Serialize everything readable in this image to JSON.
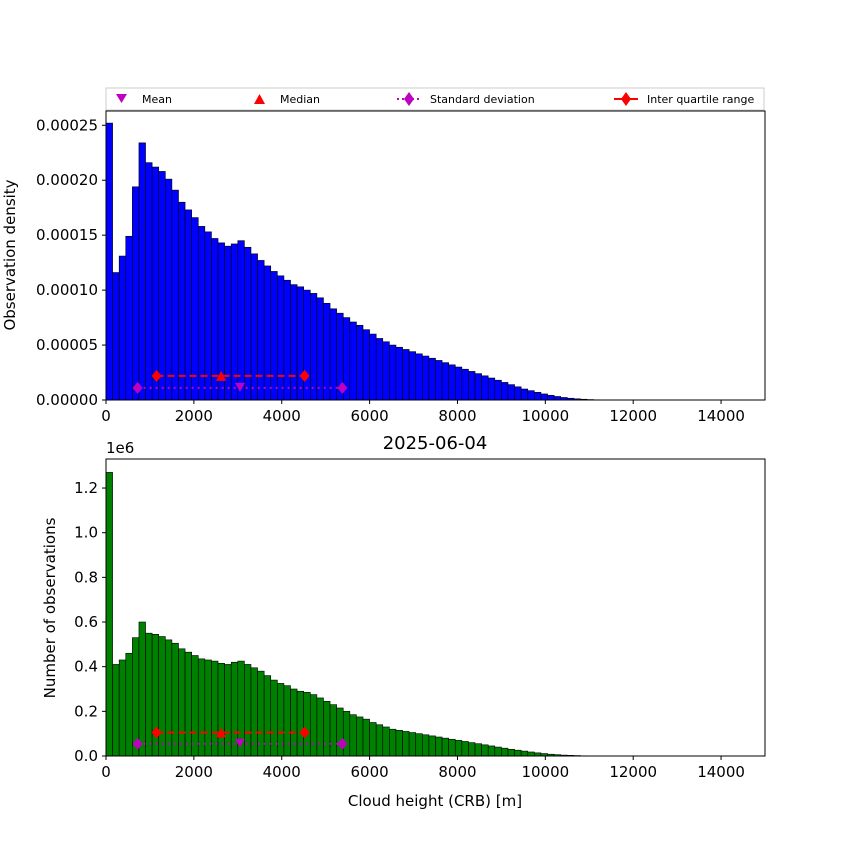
{
  "chart_data": [
    {
      "type": "bar",
      "title": "",
      "xlabel": "",
      "ylabel": "Observation density",
      "xlim": [
        0,
        15000
      ],
      "ylim": [
        0,
        0.000263
      ],
      "bin_width": 150,
      "color": "#0000ff",
      "xticks": [
        0,
        2000,
        4000,
        6000,
        8000,
        10000,
        12000,
        14000
      ],
      "xtick_labels": [
        "0",
        "2000",
        "4000",
        "6000",
        "8000",
        "10000",
        "12000",
        "14000"
      ],
      "yticks": [
        0,
        5e-05,
        0.0001,
        0.00015,
        0.0002,
        0.00025
      ],
      "ytick_labels": [
        "0.00000",
        "0.00005",
        "0.00010",
        "0.00015",
        "0.00020",
        "0.00025"
      ],
      "values": [
        0.000252,
        0.000116,
        0.000131,
        0.000149,
        0.000194,
        0.000234,
        0.000216,
        0.000212,
        0.000208,
        0.000201,
        0.000191,
        0.00018,
        0.000173,
        0.000166,
        0.000158,
        0.000153,
        0.000147,
        0.000143,
        0.00014,
        0.000142,
        0.000145,
        0.000139,
        0.000133,
        0.000127,
        0.000122,
        0.000117,
        0.000113,
        0.000109,
        0.000105,
        0.000103,
        0.0001,
        9.7e-05,
        9.3e-05,
        8.8e-05,
        8.3e-05,
        7.9e-05,
        7.5e-05,
        7.1e-05,
        6.8e-05,
        6.4e-05,
        6e-05,
        5.6e-05,
        5.3e-05,
        5e-05,
        4.8e-05,
        4.6e-05,
        4.4e-05,
        4.2e-05,
        4e-05,
        3.8e-05,
        3.6e-05,
        3.4e-05,
        3.2e-05,
        3e-05,
        2.8e-05,
        2.6e-05,
        2.4e-05,
        2.2e-05,
        2e-05,
        1.8e-05,
        1.6e-05,
        1.4e-05,
        1.2e-05,
        1e-05,
        8.5e-06,
        7e-06,
        5.5e-06,
        4.3e-06,
        3.2e-06,
        2.3e-06,
        1.6e-06,
        1.1e-06,
        7e-07,
        4e-07,
        2e-07,
        1e-07,
        5e-08,
        0,
        0,
        0,
        0,
        0,
        0,
        0,
        0,
        0,
        0,
        0,
        0,
        0,
        0,
        0,
        0,
        0,
        0,
        0,
        0,
        0,
        0,
        0
      ],
      "stats": {
        "mean": {
          "x": 3050,
          "y": 1.1e-05
        },
        "median": {
          "x": 2620,
          "y": 2.2e-05
        },
        "std_range": {
          "x": [
            720,
            5380
          ],
          "y": 1.1e-05
        },
        "iqr": {
          "x": [
            1150,
            4520
          ],
          "y": 2.2e-05
        }
      }
    },
    {
      "type": "bar",
      "title": "2025-06-04",
      "xlabel": "Cloud height (CRB) [m]",
      "ylabel": "Number of observations",
      "y_scale_label": "1e6",
      "xlim": [
        0,
        15000
      ],
      "ylim": [
        0,
        1.33
      ],
      "bin_width": 150,
      "color": "#008000",
      "xticks": [
        0,
        2000,
        4000,
        6000,
        8000,
        10000,
        12000,
        14000
      ],
      "xtick_labels": [
        "0",
        "2000",
        "4000",
        "6000",
        "8000",
        "10000",
        "12000",
        "14000"
      ],
      "yticks": [
        0,
        0.2,
        0.4,
        0.6,
        0.8,
        1.0,
        1.2
      ],
      "ytick_labels": [
        "0.0",
        "0.2",
        "0.4",
        "0.6",
        "0.8",
        "1.0",
        "1.2"
      ],
      "values": [
        1.27,
        0.41,
        0.43,
        0.46,
        0.53,
        0.6,
        0.55,
        0.545,
        0.535,
        0.52,
        0.505,
        0.48,
        0.465,
        0.45,
        0.435,
        0.43,
        0.425,
        0.415,
        0.41,
        0.42,
        0.425,
        0.41,
        0.395,
        0.38,
        0.36,
        0.34,
        0.325,
        0.315,
        0.3,
        0.29,
        0.285,
        0.275,
        0.26,
        0.245,
        0.23,
        0.215,
        0.2,
        0.185,
        0.175,
        0.165,
        0.15,
        0.14,
        0.13,
        0.12,
        0.115,
        0.11,
        0.105,
        0.1,
        0.095,
        0.09,
        0.085,
        0.08,
        0.075,
        0.07,
        0.065,
        0.06,
        0.055,
        0.05,
        0.045,
        0.04,
        0.035,
        0.03,
        0.026,
        0.022,
        0.018,
        0.014,
        0.011,
        0.008,
        0.006,
        0.004,
        0.003,
        0.002,
        0.001,
        0.0006,
        0.0003,
        0.0001,
        0,
        0,
        0,
        0,
        0,
        0,
        0,
        0,
        0,
        0,
        0,
        0,
        0,
        0,
        0,
        0,
        0,
        0,
        0,
        0,
        0,
        0,
        0,
        0
      ],
      "stats": {
        "mean": {
          "x": 3050,
          "y": 0.055
        },
        "median": {
          "x": 2620,
          "y": 0.105
        },
        "std_range": {
          "x": [
            720,
            5380
          ],
          "y": 0.055
        },
        "iqr": {
          "x": [
            1150,
            4520
          ],
          "y": 0.105
        }
      }
    }
  ],
  "legend": {
    "placement": "top",
    "entries": [
      {
        "label": "Mean",
        "marker": "triangle-down",
        "color": "#bf00bf"
      },
      {
        "label": "Median",
        "marker": "triangle-up",
        "color": "#ff0000"
      },
      {
        "label": "Standard deviation",
        "marker": "diamond",
        "line": "dotted",
        "color": "#bf00bf"
      },
      {
        "label": "Inter quartile range",
        "marker": "diamond",
        "line": "solid",
        "color": "#ff0000"
      }
    ]
  }
}
